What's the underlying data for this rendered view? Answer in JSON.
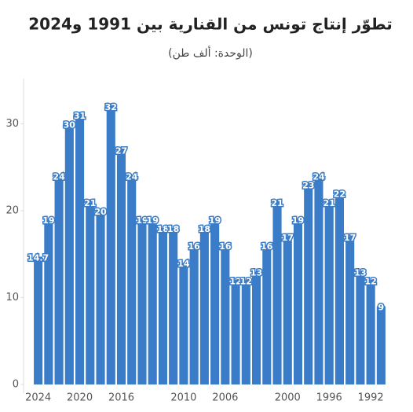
{
  "chart_data": {
    "type": "bar",
    "title": "تطوّر إنتاج تونس من القنارية بين 1991 و2024",
    "subtitle": "(الوحدة: ألف طن)",
    "categories": [
      "2024",
      null,
      null,
      null,
      "2020",
      null,
      null,
      null,
      "2016",
      null,
      null,
      null,
      null,
      null,
      "2010",
      null,
      null,
      null,
      "2006",
      null,
      null,
      null,
      null,
      null,
      "2000",
      null,
      null,
      null,
      "1996",
      null,
      null,
      null,
      "1992",
      null
    ],
    "values": [
      14.7,
      19,
      24,
      30,
      31,
      21,
      20,
      32,
      27,
      24,
      19,
      19,
      18,
      18,
      14,
      16,
      18,
      19,
      16,
      12,
      12,
      13,
      16,
      21,
      17,
      19,
      23,
      24,
      21,
      22,
      17,
      13,
      12,
      9
    ],
    "color": "#3a7cc7",
    "ylim": [
      0,
      35
    ],
    "yticks": [
      0,
      10,
      20,
      30
    ],
    "grid": false
  }
}
